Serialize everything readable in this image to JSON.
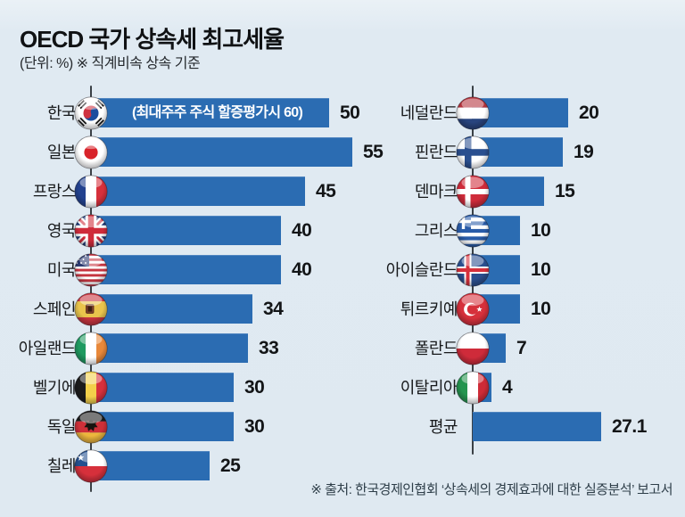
{
  "title": "OECD 국가 상속세 최고세율",
  "subtitle": "(단위: %) ※ 직계비속 상속 기준",
  "source": "※ 출처: 한국경제인협회 ‘상속세의 경제효과에 대한 실증분석’ 보고서",
  "colors": {
    "background": "#dfe9f1",
    "bar": "#2b6cb2",
    "axis": "#3a4045",
    "value_text": "#131517",
    "annotation_text": "#ffffff"
  },
  "chart_data": {
    "type": "bar",
    "orientation": "horizontal",
    "unit": "%",
    "title": "OECD 국가 상속세 최고세율",
    "value_range": [
      0,
      55
    ],
    "columns": [
      {
        "rows": [
          {
            "label": "한국",
            "value": 50,
            "flag": "kr",
            "annotation": "(최대주주 주식 할증평가시 60)"
          },
          {
            "label": "일본",
            "value": 55,
            "flag": "jp"
          },
          {
            "label": "프랑스",
            "value": 45,
            "flag": "fr"
          },
          {
            "label": "영국",
            "value": 40,
            "flag": "gb"
          },
          {
            "label": "미국",
            "value": 40,
            "flag": "us"
          },
          {
            "label": "스페인",
            "value": 34,
            "flag": "es"
          },
          {
            "label": "아일랜드",
            "value": 33,
            "flag": "ie"
          },
          {
            "label": "벨기에",
            "value": 30,
            "flag": "be"
          },
          {
            "label": "독일",
            "value": 30,
            "flag": "de"
          },
          {
            "label": "칠레",
            "value": 25,
            "flag": "cl"
          }
        ]
      },
      {
        "rows": [
          {
            "label": "네덜란드",
            "value": 20,
            "flag": "nl"
          },
          {
            "label": "핀란드",
            "value": 19,
            "flag": "fi"
          },
          {
            "label": "덴마크",
            "value": 15,
            "flag": "dk"
          },
          {
            "label": "그리스",
            "value": 10,
            "flag": "gr"
          },
          {
            "label": "아이슬란드",
            "value": 10,
            "flag": "is"
          },
          {
            "label": "튀르키예",
            "value": 10,
            "flag": "tr"
          },
          {
            "label": "폴란드",
            "value": 7,
            "flag": "pl"
          },
          {
            "label": "이탈리아",
            "value": 4,
            "flag": "it"
          },
          {
            "label": "평균",
            "value": 27.1,
            "flag": null
          }
        ]
      }
    ]
  }
}
